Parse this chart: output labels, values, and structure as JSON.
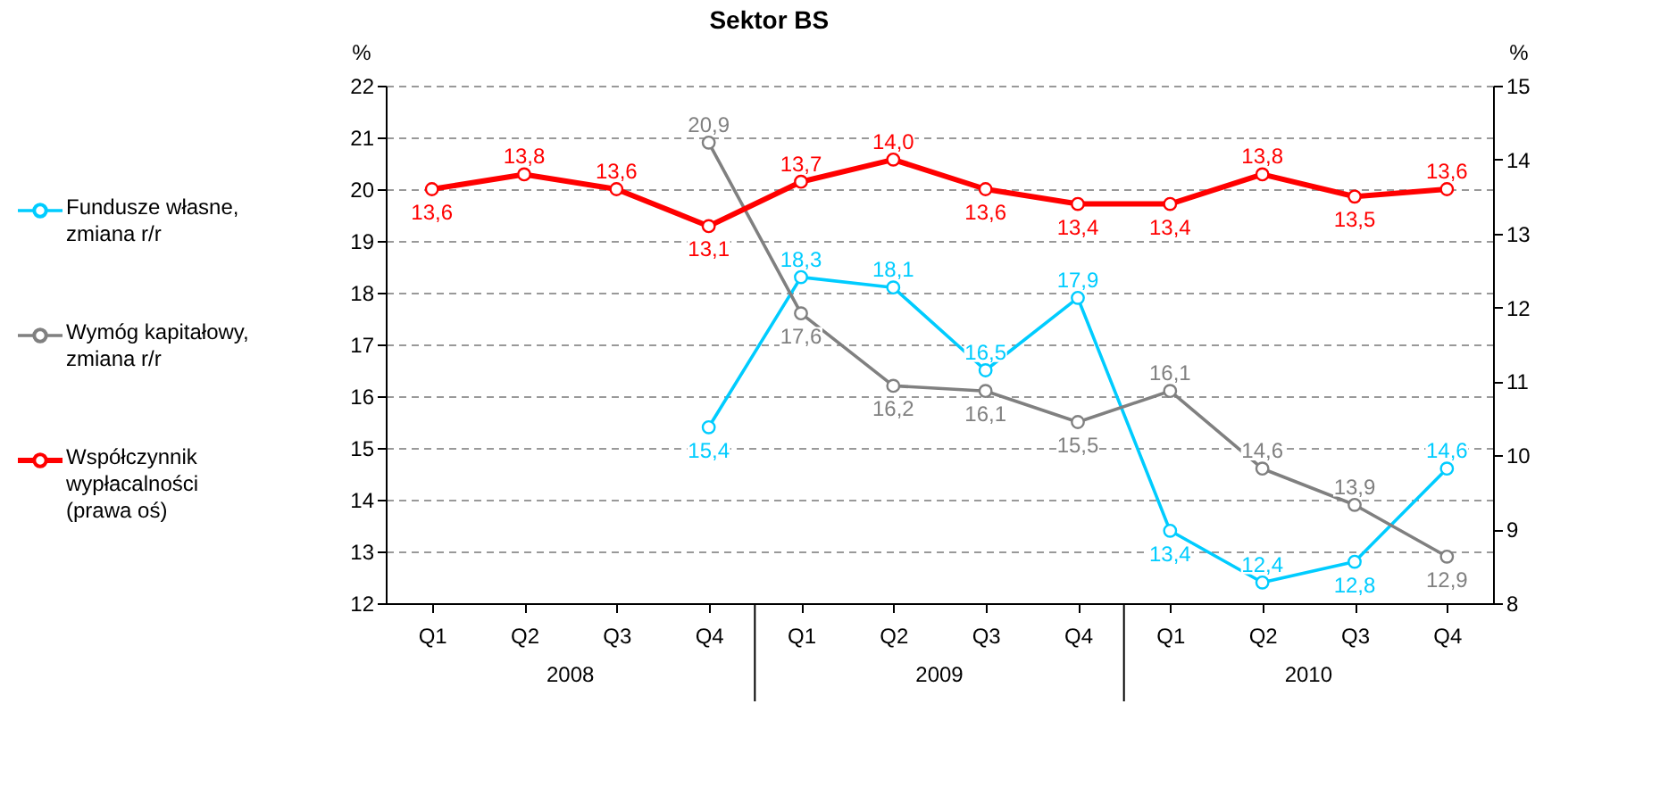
{
  "chart_data": {
    "type": "line",
    "title": "Sektor BS",
    "categories": [
      "Q1",
      "Q2",
      "Q3",
      "Q4",
      "Q1",
      "Q2",
      "Q3",
      "Q4",
      "Q1",
      "Q2",
      "Q3",
      "Q4"
    ],
    "annotations": [
      "2008",
      "2009",
      "2010"
    ],
    "ylabel": "%",
    "y2label": "%",
    "ylim": [
      12,
      22
    ],
    "yticks": [
      12,
      13,
      14,
      15,
      16,
      17,
      18,
      19,
      20,
      21,
      22
    ],
    "y2lim": [
      8,
      15
    ],
    "y2ticks": [
      8,
      9,
      10,
      11,
      12,
      13,
      14,
      15
    ],
    "grid": "y",
    "legend": "left",
    "marker": "circle",
    "line_style": "solid",
    "series": [
      {
        "name": "Fundusze własne, zmiana r/r",
        "color": "#00ccff",
        "values": [
          null,
          null,
          null,
          15.4,
          18.3,
          18.1,
          16.5,
          17.9,
          13.4,
          12.4,
          12.8,
          14.6
        ],
        "value_labels": [
          null,
          null,
          null,
          "15,4",
          "18,3",
          "18,1",
          "16,5",
          "17,9",
          "13,4",
          "12,4",
          "12,8",
          "14,6"
        ]
      },
      {
        "name": "Wymóg kapitałowy, zmiana r/r",
        "color": "#808080",
        "values": [
          null,
          null,
          null,
          20.9,
          17.6,
          16.2,
          16.1,
          15.5,
          16.1,
          14.6,
          13.9,
          12.9
        ],
        "value_labels": [
          null,
          null,
          null,
          "20,9",
          "17,6",
          "16,2",
          "16,1",
          "15,5",
          "16,1",
          "14,6",
          "13,9",
          "12,9"
        ]
      },
      {
        "name": "Współczynnik wypłacalności (prawa oś)",
        "color": "#ff0000",
        "axis": "y2",
        "values": [
          13.6,
          13.8,
          13.6,
          13.1,
          13.7,
          14.0,
          13.6,
          13.4,
          13.4,
          13.8,
          13.5,
          13.6
        ],
        "value_labels": [
          "13,6",
          "13,8",
          "13,6",
          "13,1",
          "13,7",
          "14,0",
          "13,6",
          "13,4",
          "13,4",
          "13,8",
          "13,5",
          "13,6"
        ]
      }
    ]
  }
}
